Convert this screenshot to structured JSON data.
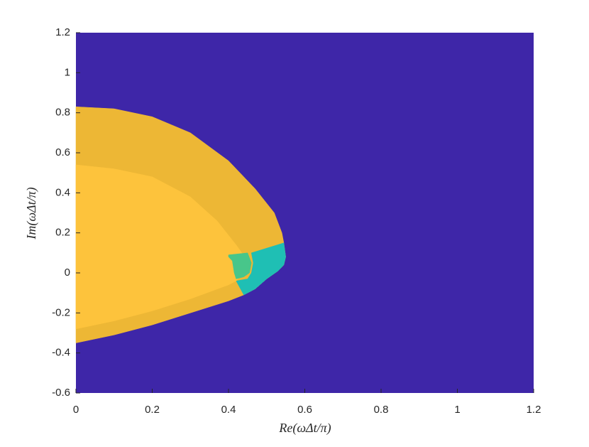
{
  "chart_data": {
    "type": "region",
    "x_label": "Re(ωΔt/π)",
    "y_label": "Im(ωΔt/π)",
    "xlim": [
      0,
      1.2
    ],
    "xticks": [
      0,
      0.2,
      0.4,
      0.6,
      0.8,
      1,
      1.2
    ],
    "ylim": [
      -0.6,
      1.2
    ],
    "yticks": [
      -0.6,
      -0.4,
      -0.2,
      0,
      0.2,
      0.4,
      0.6,
      0.8,
      1,
      1.2
    ],
    "background": "#3e26a8",
    "regions": [
      {
        "color": "#edb735",
        "x": [
          0,
          0.1,
          0.2,
          0.3,
          0.4,
          0.47,
          0.52,
          0.54,
          0.545,
          0.55,
          0.545,
          0.53,
          0.5,
          0.47,
          0.44,
          0.4,
          0.3,
          0.2,
          0.1,
          0
        ],
        "y": [
          0.83,
          0.82,
          0.78,
          0.7,
          0.56,
          0.42,
          0.3,
          0.2,
          0.15,
          0.08,
          0.04,
          0.01,
          -0.03,
          -0.08,
          -0.11,
          -0.14,
          -0.2,
          -0.26,
          -0.31,
          -0.35
        ]
      },
      {
        "color": "#1fbfb4",
        "x": [
          0.46,
          0.545,
          0.55,
          0.545,
          0.53,
          0.5,
          0.47,
          0.44,
          0.42,
          0.45,
          0.46,
          0.465
        ],
        "y": [
          0.1,
          0.15,
          0.08,
          0.04,
          0.01,
          -0.03,
          -0.08,
          -0.11,
          -0.04,
          -0.03,
          0,
          0.05
        ]
      },
      {
        "color": "#fdc33c",
        "x": [
          0,
          0.1,
          0.2,
          0.3,
          0.37,
          0.42,
          0.45,
          0.44,
          0.42,
          0.4,
          0.3,
          0.2,
          0.1,
          0
        ],
        "y": [
          0.54,
          0.52,
          0.48,
          0.38,
          0.26,
          0.14,
          0.06,
          0,
          -0.04,
          -0.06,
          -0.13,
          -0.19,
          -0.24,
          -0.28
        ]
      },
      {
        "color": "#48c68a",
        "x": [
          0.4,
          0.45,
          0.46,
          0.455,
          0.44,
          0.42,
          0.415,
          0.41,
          0.4
        ],
        "y": [
          0.09,
          0.1,
          0.05,
          0,
          -0.02,
          -0.03,
          0,
          0.06,
          0.08
        ]
      }
    ]
  }
}
